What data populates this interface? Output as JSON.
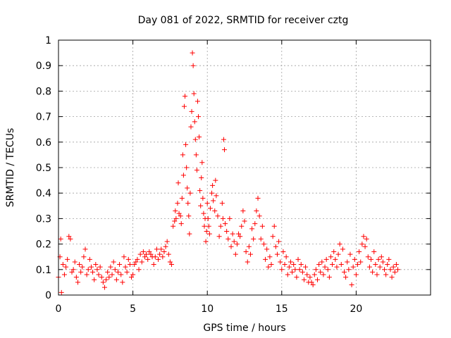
{
  "chart_data": {
    "type": "scatter",
    "title": "Day 081 of 2022, SRMTID for receiver cztg",
    "xlabel": "GPS time / hours",
    "ylabel": "SRMTID / TECUs",
    "xlim": [
      0,
      25
    ],
    "ylim": [
      0,
      1
    ],
    "xticks": [
      0,
      5,
      10,
      15,
      20
    ],
    "xtick_labels": [
      "0",
      "5",
      "10",
      "15",
      "20"
    ],
    "yticks": [
      0,
      0.1,
      0.2,
      0.3,
      0.4,
      0.5,
      0.6,
      0.7,
      0.8,
      0.9,
      1
    ],
    "ytick_labels": [
      "0",
      "0.1",
      "0.2",
      "0.3",
      "0.4",
      "0.5",
      "0.6",
      "0.7",
      "0.8",
      "0.9",
      "1"
    ],
    "grid": true,
    "marker": "+",
    "color": "#ff0000",
    "series": [
      {
        "name": "SRMTID",
        "points": [
          [
            0.0,
            0.07
          ],
          [
            0.1,
            0.15
          ],
          [
            0.15,
            0.22
          ],
          [
            0.2,
            0.01
          ],
          [
            0.3,
            0.12
          ],
          [
            0.4,
            0.08
          ],
          [
            0.5,
            0.11
          ],
          [
            0.6,
            0.14
          ],
          [
            0.7,
            0.23
          ],
          [
            0.8,
            0.22
          ],
          [
            0.9,
            0.09
          ],
          [
            1.0,
            0.1
          ],
          [
            1.1,
            0.13
          ],
          [
            1.2,
            0.07
          ],
          [
            1.3,
            0.05
          ],
          [
            1.4,
            0.12
          ],
          [
            1.5,
            0.09
          ],
          [
            1.6,
            0.11
          ],
          [
            1.7,
            0.15
          ],
          [
            1.8,
            0.18
          ],
          [
            1.9,
            0.08
          ],
          [
            2.0,
            0.1
          ],
          [
            2.1,
            0.14
          ],
          [
            2.2,
            0.11
          ],
          [
            2.3,
            0.09
          ],
          [
            2.4,
            0.06
          ],
          [
            2.5,
            0.12
          ],
          [
            2.6,
            0.1
          ],
          [
            2.7,
            0.08
          ],
          [
            2.8,
            0.11
          ],
          [
            2.9,
            0.07
          ],
          [
            3.0,
            0.05
          ],
          [
            3.1,
            0.03
          ],
          [
            3.2,
            0.06
          ],
          [
            3.3,
            0.09
          ],
          [
            3.4,
            0.07
          ],
          [
            3.5,
            0.11
          ],
          [
            3.6,
            0.08
          ],
          [
            3.7,
            0.13
          ],
          [
            3.8,
            0.1
          ],
          [
            3.9,
            0.06
          ],
          [
            4.0,
            0.09
          ],
          [
            4.1,
            0.12
          ],
          [
            4.2,
            0.08
          ],
          [
            4.3,
            0.05
          ],
          [
            4.4,
            0.15
          ],
          [
            4.5,
            0.11
          ],
          [
            4.6,
            0.09
          ],
          [
            4.7,
            0.14
          ],
          [
            4.8,
            0.12
          ],
          [
            4.9,
            0.07
          ],
          [
            5.0,
            0.08
          ],
          [
            5.1,
            0.12
          ],
          [
            5.2,
            0.13
          ],
          [
            5.3,
            0.14
          ],
          [
            5.4,
            0.1
          ],
          [
            5.5,
            0.16
          ],
          [
            5.6,
            0.13
          ],
          [
            5.7,
            0.17
          ],
          [
            5.8,
            0.15
          ],
          [
            5.9,
            0.16
          ],
          [
            6.0,
            0.14
          ],
          [
            6.1,
            0.17
          ],
          [
            6.2,
            0.16
          ],
          [
            6.3,
            0.15
          ],
          [
            6.4,
            0.12
          ],
          [
            6.5,
            0.15
          ],
          [
            6.6,
            0.18
          ],
          [
            6.7,
            0.14
          ],
          [
            6.8,
            0.16
          ],
          [
            6.9,
            0.18
          ],
          [
            7.0,
            0.15
          ],
          [
            7.1,
            0.17
          ],
          [
            7.2,
            0.19
          ],
          [
            7.3,
            0.21
          ],
          [
            7.4,
            0.16
          ],
          [
            7.5,
            0.13
          ],
          [
            7.6,
            0.12
          ],
          [
            7.7,
            0.27
          ],
          [
            7.8,
            0.29
          ],
          [
            7.85,
            0.33
          ],
          [
            7.9,
            0.3
          ],
          [
            8.0,
            0.36
          ],
          [
            8.05,
            0.44
          ],
          [
            8.1,
            0.32
          ],
          [
            8.2,
            0.31
          ],
          [
            8.25,
            0.28
          ],
          [
            8.3,
            0.38
          ],
          [
            8.35,
            0.55
          ],
          [
            8.4,
            0.47
          ],
          [
            8.45,
            0.74
          ],
          [
            8.5,
            0.78
          ],
          [
            8.55,
            0.59
          ],
          [
            8.6,
            0.5
          ],
          [
            8.65,
            0.42
          ],
          [
            8.7,
            0.36
          ],
          [
            8.75,
            0.31
          ],
          [
            8.8,
            0.24
          ],
          [
            8.85,
            0.4
          ],
          [
            8.9,
            0.66
          ],
          [
            8.95,
            0.72
          ],
          [
            9.0,
            0.95
          ],
          [
            9.05,
            0.9
          ],
          [
            9.1,
            0.79
          ],
          [
            9.15,
            0.68
          ],
          [
            9.2,
            0.61
          ],
          [
            9.25,
            0.55
          ],
          [
            9.3,
            0.49
          ],
          [
            9.35,
            0.76
          ],
          [
            9.4,
            0.7
          ],
          [
            9.45,
            0.62
          ],
          [
            9.5,
            0.41
          ],
          [
            9.55,
            0.35
          ],
          [
            9.6,
            0.46
          ],
          [
            9.65,
            0.52
          ],
          [
            9.7,
            0.38
          ],
          [
            9.75,
            0.32
          ],
          [
            9.8,
            0.27
          ],
          [
            9.85,
            0.3
          ],
          [
            9.9,
            0.21
          ],
          [
            9.95,
            0.25
          ],
          [
            10.0,
            0.36
          ],
          [
            10.05,
            0.3
          ],
          [
            10.1,
            0.27
          ],
          [
            10.15,
            0.24
          ],
          [
            10.2,
            0.34
          ],
          [
            10.3,
            0.4
          ],
          [
            10.35,
            0.43
          ],
          [
            10.4,
            0.37
          ],
          [
            10.5,
            0.33
          ],
          [
            10.55,
            0.45
          ],
          [
            10.6,
            0.39
          ],
          [
            10.7,
            0.31
          ],
          [
            10.8,
            0.23
          ],
          [
            10.9,
            0.27
          ],
          [
            11.0,
            0.36
          ],
          [
            11.05,
            0.3
          ],
          [
            11.1,
            0.61
          ],
          [
            11.15,
            0.57
          ],
          [
            11.2,
            0.28
          ],
          [
            11.3,
            0.25
          ],
          [
            11.4,
            0.22
          ],
          [
            11.5,
            0.3
          ],
          [
            11.6,
            0.19
          ],
          [
            11.7,
            0.24
          ],
          [
            11.8,
            0.21
          ],
          [
            11.9,
            0.16
          ],
          [
            12.0,
            0.2
          ],
          [
            12.1,
            0.24
          ],
          [
            12.2,
            0.23
          ],
          [
            12.3,
            0.27
          ],
          [
            12.4,
            0.33
          ],
          [
            12.5,
            0.29
          ],
          [
            12.6,
            0.17
          ],
          [
            12.7,
            0.13
          ],
          [
            12.8,
            0.19
          ],
          [
            12.9,
            0.16
          ],
          [
            13.0,
            0.26
          ],
          [
            13.1,
            0.22
          ],
          [
            13.2,
            0.28
          ],
          [
            13.3,
            0.33
          ],
          [
            13.4,
            0.38
          ],
          [
            13.5,
            0.31
          ],
          [
            13.6,
            0.22
          ],
          [
            13.7,
            0.27
          ],
          [
            13.8,
            0.2
          ],
          [
            13.9,
            0.14
          ],
          [
            14.0,
            0.18
          ],
          [
            14.1,
            0.11
          ],
          [
            14.2,
            0.15
          ],
          [
            14.3,
            0.12
          ],
          [
            14.4,
            0.23
          ],
          [
            14.5,
            0.27
          ],
          [
            14.6,
            0.19
          ],
          [
            14.7,
            0.16
          ],
          [
            14.8,
            0.21
          ],
          [
            14.9,
            0.13
          ],
          [
            15.0,
            0.1
          ],
          [
            15.1,
            0.17
          ],
          [
            15.2,
            0.12
          ],
          [
            15.3,
            0.15
          ],
          [
            15.4,
            0.08
          ],
          [
            15.5,
            0.11
          ],
          [
            15.6,
            0.13
          ],
          [
            15.7,
            0.09
          ],
          [
            15.8,
            0.12
          ],
          [
            15.9,
            0.1
          ],
          [
            16.0,
            0.07
          ],
          [
            16.1,
            0.14
          ],
          [
            16.2,
            0.1
          ],
          [
            16.3,
            0.12
          ],
          [
            16.4,
            0.09
          ],
          [
            16.5,
            0.06
          ],
          [
            16.6,
            0.11
          ],
          [
            16.7,
            0.08
          ],
          [
            16.8,
            0.05
          ],
          [
            16.9,
            0.07
          ],
          [
            17.0,
            0.05
          ],
          [
            17.1,
            0.04
          ],
          [
            17.2,
            0.08
          ],
          [
            17.3,
            0.1
          ],
          [
            17.4,
            0.06
          ],
          [
            17.5,
            0.12
          ],
          [
            17.6,
            0.09
          ],
          [
            17.7,
            0.13
          ],
          [
            17.8,
            0.08
          ],
          [
            17.9,
            0.11
          ],
          [
            18.0,
            0.14
          ],
          [
            18.1,
            0.1
          ],
          [
            18.2,
            0.07
          ],
          [
            18.3,
            0.15
          ],
          [
            18.4,
            0.12
          ],
          [
            18.5,
            0.17
          ],
          [
            18.6,
            0.14
          ],
          [
            18.7,
            0.11
          ],
          [
            18.8,
            0.16
          ],
          [
            18.9,
            0.2
          ],
          [
            19.0,
            0.12
          ],
          [
            19.1,
            0.18
          ],
          [
            19.2,
            0.09
          ],
          [
            19.3,
            0.07
          ],
          [
            19.4,
            0.13
          ],
          [
            19.5,
            0.1
          ],
          [
            19.6,
            0.16
          ],
          [
            19.7,
            0.04
          ],
          [
            19.8,
            0.11
          ],
          [
            19.9,
            0.14
          ],
          [
            20.0,
            0.08
          ],
          [
            20.1,
            0.12
          ],
          [
            20.2,
            0.17
          ],
          [
            20.3,
            0.13
          ],
          [
            20.4,
            0.2
          ],
          [
            20.5,
            0.23
          ],
          [
            20.6,
            0.19
          ],
          [
            20.7,
            0.22
          ],
          [
            20.8,
            0.15
          ],
          [
            20.9,
            0.11
          ],
          [
            21.0,
            0.14
          ],
          [
            21.1,
            0.09
          ],
          [
            21.2,
            0.17
          ],
          [
            21.3,
            0.12
          ],
          [
            21.4,
            0.08
          ],
          [
            21.5,
            0.14
          ],
          [
            21.6,
            0.11
          ],
          [
            21.7,
            0.15
          ],
          [
            21.8,
            0.13
          ],
          [
            21.9,
            0.1
          ],
          [
            22.0,
            0.08
          ],
          [
            22.1,
            0.12
          ],
          [
            22.2,
            0.14
          ],
          [
            22.3,
            0.1
          ],
          [
            22.4,
            0.07
          ],
          [
            22.5,
            0.11
          ],
          [
            22.6,
            0.09
          ],
          [
            22.7,
            0.12
          ],
          [
            22.8,
            0.1
          ]
        ]
      }
    ]
  }
}
